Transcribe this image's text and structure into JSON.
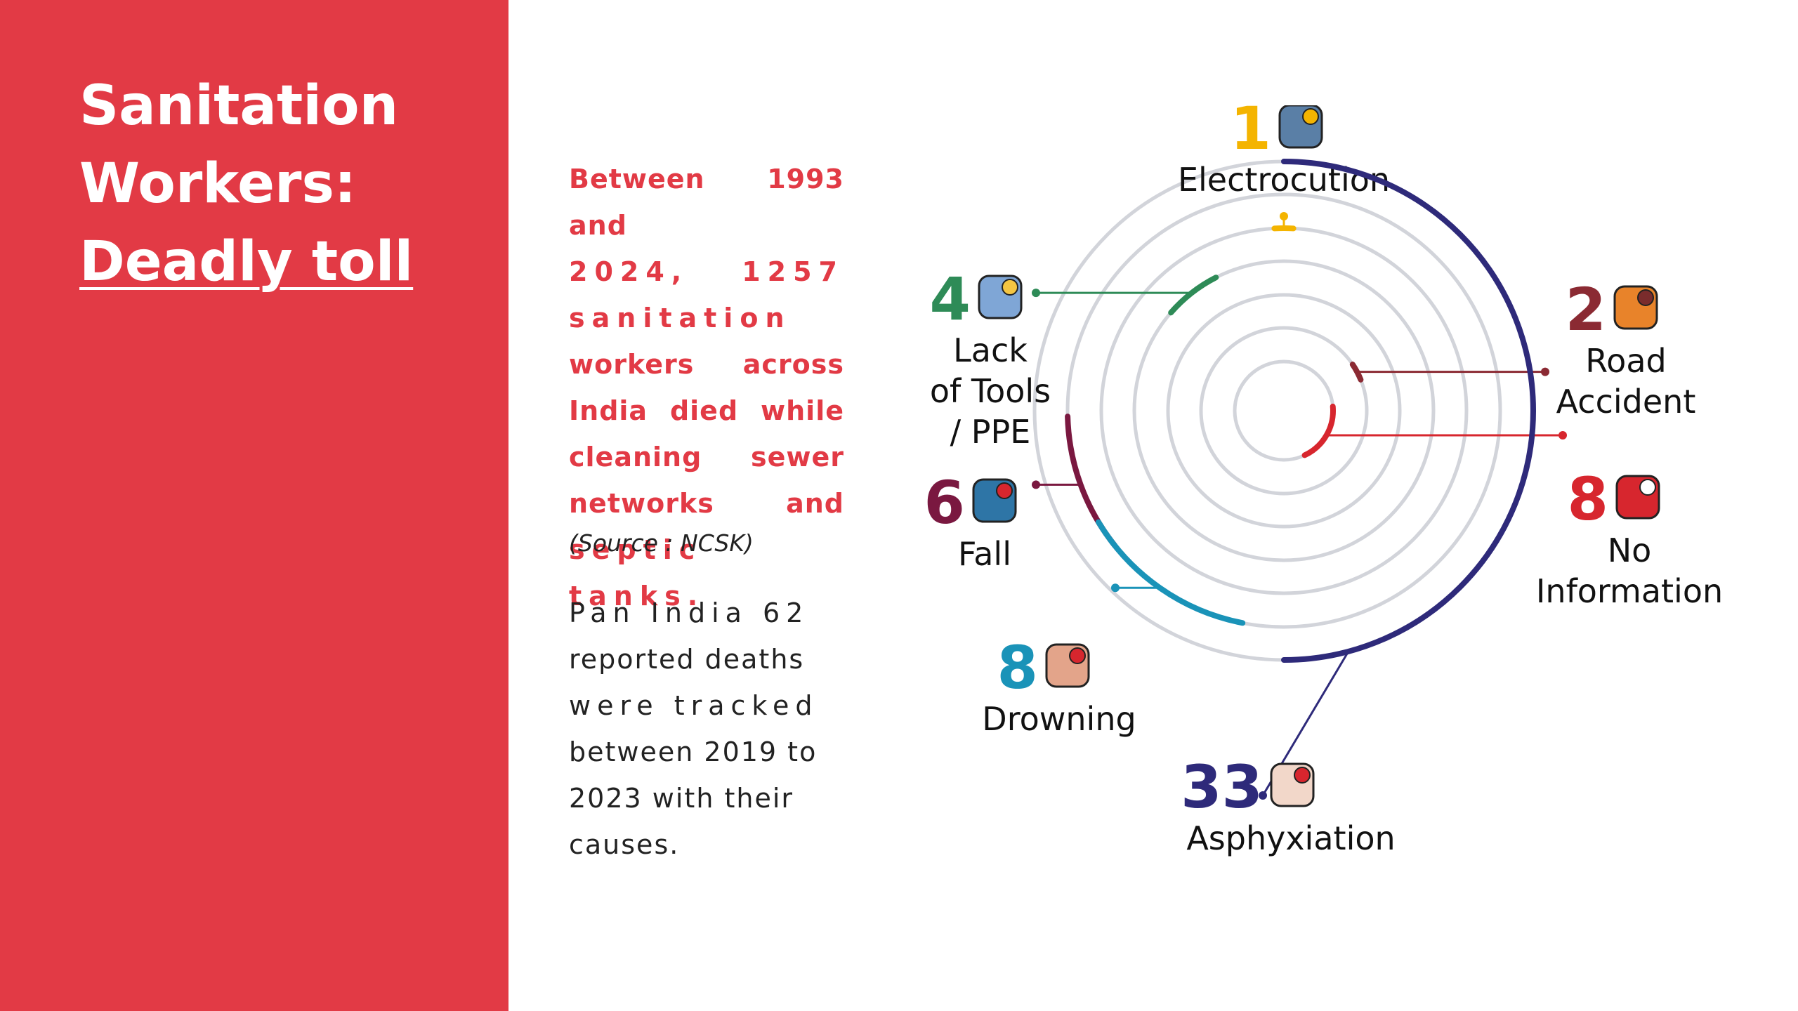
{
  "title": {
    "line1": "Sanitation",
    "line2": "Workers:",
    "line3": "Deadly toll"
  },
  "intro": {
    "line1": "Between 1993 and",
    "line2": "2024, 1257",
    "line3": "sanitation",
    "line4": "workers across",
    "line5": "India died while",
    "line6": "cleaning sewer",
    "line7": "networks and",
    "line8": "septic tanks.",
    "source": "(Source : NCSK)"
  },
  "tracked": {
    "line1": "Pan India 62",
    "line2": "reported deaths",
    "line3": "were tracked",
    "line4": "between 2019 to",
    "line5": "2023 with their",
    "line6": "causes."
  },
  "chart_data": {
    "type": "radial-bar",
    "categories": [
      "Electrocution",
      "Road Accident",
      "No Information",
      "Lack of Tools / PPE",
      "Fall",
      "Drowning",
      "Asphyxiation"
    ],
    "values": [
      1,
      2,
      8,
      4,
      6,
      8,
      33
    ],
    "series": [
      {
        "category": "Electrocution",
        "value": 1,
        "value_label": "1",
        "label_lines": [
          "Electrocution"
        ],
        "color": "#f4b400",
        "icon": "electrocution-icon"
      },
      {
        "category": "Road Accident",
        "value": 2,
        "value_label": "2",
        "label_lines": [
          "Road",
          "Accident"
        ],
        "color": "#8b2a33",
        "icon": "road-accident-icon"
      },
      {
        "category": "No Information",
        "value": 8,
        "value_label": "8",
        "label_lines": [
          "No",
          "Information"
        ],
        "color": "#d7262e",
        "icon": "info-icon"
      },
      {
        "category": "Lack of Tools / PPE",
        "value": 4,
        "value_label": "4",
        "label_lines": [
          "Lack",
          "of Tools",
          "/ PPE"
        ],
        "color": "#2e8b57",
        "icon": "worker-icon"
      },
      {
        "category": "Fall",
        "value": 6,
        "value_label": "6",
        "label_lines": [
          "Fall"
        ],
        "color": "#7a1840",
        "icon": "fall-icon"
      },
      {
        "category": "Drowning",
        "value": 8,
        "value_label": "8",
        "label_lines": [
          "Drowning"
        ],
        "color": "#1a93b8",
        "icon": "drowning-icon"
      },
      {
        "category": "Asphyxiation",
        "value": 33,
        "value_label": "33",
        "label_lines": [
          "Asphyxiation"
        ],
        "color": "#2e2a7a",
        "icon": "asphyxiation-icon"
      }
    ],
    "colors": {
      "accent": "#e23a45",
      "grid": "#d2d4da"
    }
  }
}
